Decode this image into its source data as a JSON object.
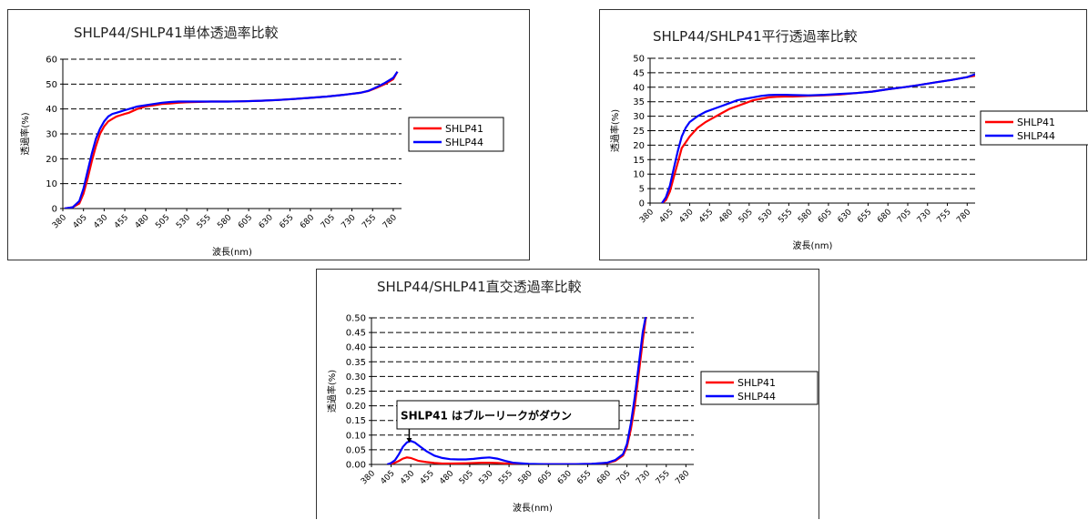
{
  "chart_data": [
    {
      "type": "line",
      "title": "SHLP44/SHLP41単体透過率比較",
      "xlabel": "波長(nm)",
      "ylabel": "透過率(%)",
      "xlim": [
        380,
        790
      ],
      "ylim": [
        0,
        60
      ],
      "yticks": [
        0,
        10,
        20,
        30,
        40,
        50,
        60
      ],
      "ytick_decimals": 0,
      "x_ticks": [
        380,
        405,
        430,
        455,
        480,
        505,
        530,
        555,
        580,
        605,
        630,
        655,
        680,
        705,
        730,
        755,
        780
      ],
      "grid": true,
      "legend_position": "right",
      "colors": {
        "SHLP41": "#ff0000",
        "SHLP44": "#0000ff"
      },
      "series": [
        {
          "name": "SHLP41",
          "x": [
            382,
            392,
            400,
            405,
            410,
            415,
            420,
            425,
            430,
            435,
            440,
            445,
            450,
            455,
            460,
            470,
            480,
            490,
            500,
            510,
            520,
            530,
            540,
            560,
            580,
            600,
            620,
            640,
            660,
            680,
            700,
            720,
            740,
            750,
            760,
            770,
            780,
            785
          ],
          "y": [
            0,
            0.5,
            2,
            6,
            12,
            19,
            25,
            30,
            33,
            35,
            36,
            37,
            37.5,
            38,
            38.5,
            40,
            41,
            41.5,
            42,
            42.2,
            42.5,
            42.7,
            42.8,
            43,
            43,
            43.1,
            43.3,
            43.6,
            44,
            44.5,
            45,
            45.7,
            46.5,
            47.2,
            48.5,
            50,
            52,
            55
          ]
        },
        {
          "name": "SHLP44",
          "x": [
            382,
            392,
            400,
            405,
            410,
            415,
            420,
            425,
            430,
            435,
            440,
            445,
            450,
            455,
            460,
            470,
            480,
            490,
            500,
            510,
            520,
            530,
            540,
            560,
            580,
            600,
            620,
            640,
            660,
            680,
            700,
            720,
            740,
            750,
            760,
            770,
            780,
            785
          ],
          "y": [
            0,
            0.5,
            3,
            8,
            15,
            22,
            28,
            32,
            35,
            37,
            38,
            38.5,
            39,
            39.5,
            40,
            41,
            41.5,
            42,
            42.5,
            42.8,
            43,
            43,
            43,
            43,
            43,
            43.1,
            43.3,
            43.6,
            44,
            44.5,
            45,
            45.7,
            46.5,
            47.3,
            48.8,
            50.5,
            52.5,
            55
          ]
        }
      ]
    },
    {
      "type": "line",
      "title": "SHLP44/SHLP41平行透過率比較",
      "xlabel": "波長(nm)",
      "ylabel": "透過率(%)",
      "xlim": [
        380,
        790
      ],
      "ylim": [
        0,
        50
      ],
      "yticks": [
        0,
        5,
        10,
        15,
        20,
        25,
        30,
        35,
        40,
        45,
        50
      ],
      "ytick_decimals": 0,
      "x_ticks": [
        380,
        405,
        430,
        455,
        480,
        505,
        530,
        555,
        580,
        605,
        630,
        655,
        680,
        705,
        730,
        755,
        780
      ],
      "grid": true,
      "legend_position": "right",
      "colors": {
        "SHLP41": "#ff0000",
        "SHLP44": "#0000ff"
      },
      "series": [
        {
          "name": "SHLP41",
          "x": [
            395,
            400,
            405,
            410,
            415,
            420,
            425,
            430,
            440,
            450,
            460,
            470,
            480,
            490,
            500,
            510,
            520,
            530,
            540,
            550,
            560,
            580,
            600,
            620,
            640,
            660,
            680,
            700,
            720,
            740,
            760,
            780,
            790
          ],
          "y": [
            0,
            1,
            4,
            9,
            14,
            19,
            21,
            23,
            26,
            28,
            29.5,
            31,
            32.5,
            33.5,
            34.5,
            35.5,
            36,
            36.5,
            36.7,
            36.8,
            36.8,
            37,
            37.2,
            37.5,
            38,
            38.5,
            39.3,
            40,
            40.8,
            41.7,
            42.5,
            43.5,
            44
          ]
        },
        {
          "name": "SHLP44",
          "x": [
            395,
            400,
            405,
            410,
            415,
            420,
            425,
            430,
            440,
            450,
            460,
            470,
            480,
            490,
            500,
            510,
            520,
            530,
            540,
            550,
            560,
            580,
            600,
            620,
            640,
            660,
            680,
            700,
            720,
            740,
            760,
            780,
            790
          ],
          "y": [
            0,
            2,
            6,
            12,
            18,
            23,
            26,
            28,
            30,
            31.5,
            32.5,
            33.5,
            34.5,
            35.5,
            36,
            36.5,
            37,
            37.3,
            37.4,
            37.4,
            37.3,
            37.2,
            37.4,
            37.7,
            38,
            38.5,
            39.3,
            40,
            40.8,
            41.7,
            42.5,
            43.5,
            44.5
          ]
        }
      ]
    },
    {
      "type": "line",
      "title": "SHLP44/SHLP41直交透過率比較",
      "xlabel": "波長(nm)",
      "ylabel": "透過率(%)",
      "xlim": [
        380,
        790
      ],
      "ylim": [
        0,
        0.5
      ],
      "yticks": [
        0,
        0.05,
        0.1,
        0.15,
        0.2,
        0.25,
        0.3,
        0.35,
        0.4,
        0.45,
        0.5
      ],
      "ytick_decimals": 2,
      "x_ticks": [
        380,
        405,
        430,
        455,
        480,
        505,
        530,
        555,
        580,
        605,
        630,
        655,
        680,
        705,
        730,
        755,
        780
      ],
      "grid": true,
      "legend_position": "right",
      "colors": {
        "SHLP41": "#ff0000",
        "SHLP44": "#0000ff"
      },
      "annotation": "SHLP41 はブルーリークがダウン",
      "annotation_x": 428,
      "series": [
        {
          "name": "SHLP41",
          "x": [
            400,
            405,
            410,
            415,
            420,
            425,
            430,
            435,
            440,
            450,
            460,
            470,
            480,
            500,
            520,
            530,
            540,
            560,
            580,
            600,
            620,
            640,
            660,
            680,
            690,
            700,
            705,
            710,
            715,
            720,
            725,
            730
          ],
          "y": [
            0,
            0.002,
            0.006,
            0.012,
            0.02,
            0.024,
            0.022,
            0.017,
            0.012,
            0.008,
            0.005,
            0.003,
            0.003,
            0.004,
            0.006,
            0.006,
            0.005,
            0.002,
            0.001,
            0.001,
            0.001,
            0.001,
            0.002,
            0.005,
            0.012,
            0.03,
            0.06,
            0.12,
            0.2,
            0.31,
            0.42,
            0.52
          ]
        },
        {
          "name": "SHLP44",
          "x": [
            400,
            405,
            410,
            415,
            420,
            425,
            430,
            435,
            440,
            450,
            460,
            470,
            480,
            490,
            500,
            510,
            520,
            530,
            540,
            550,
            560,
            580,
            600,
            620,
            640,
            660,
            680,
            690,
            700,
            705,
            710,
            715,
            720,
            725,
            730
          ],
          "y": [
            0,
            0.005,
            0.015,
            0.035,
            0.06,
            0.075,
            0.08,
            0.075,
            0.065,
            0.045,
            0.03,
            0.022,
            0.018,
            0.017,
            0.017,
            0.019,
            0.022,
            0.024,
            0.02,
            0.012,
            0.006,
            0.002,
            0.001,
            0.001,
            0.001,
            0.002,
            0.006,
            0.015,
            0.035,
            0.07,
            0.14,
            0.23,
            0.34,
            0.45,
            0.52
          ]
        }
      ]
    }
  ]
}
